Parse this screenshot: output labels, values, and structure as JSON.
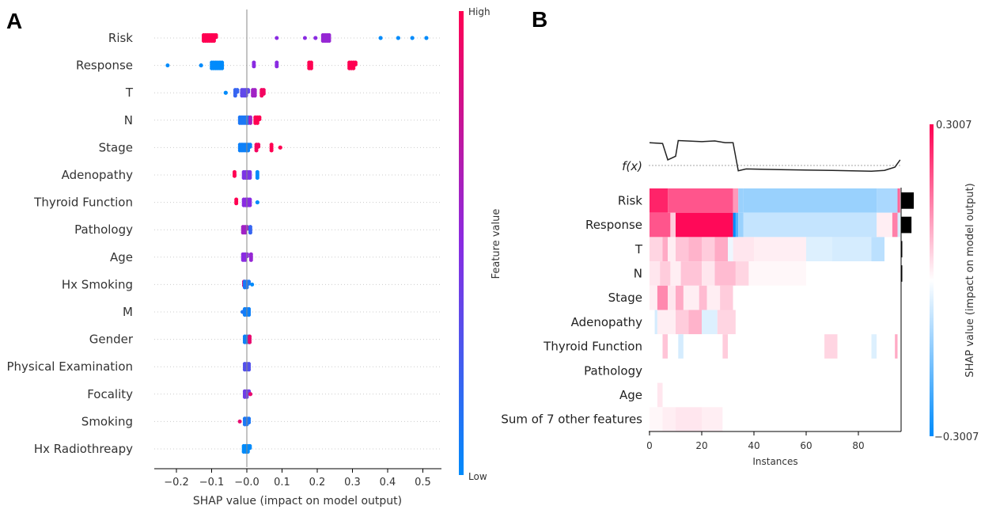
{
  "panels": [
    {
      "letter": "A",
      "chart_data": {
        "type": "scatter",
        "subtype": "beeswarm",
        "features": [
          "Risk",
          "Response",
          "T",
          "N",
          "Stage",
          "Adenopathy",
          "Thyroid Function",
          "Pathology",
          "Age",
          "Hx Smoking",
          "M",
          "Gender",
          "Physical Examination",
          "Focality",
          "Smoking",
          "Hx Radiothreapy"
        ],
        "xlabel": "SHAP value (impact on model output)",
        "xticks": [
          -0.2,
          -0.1,
          0.0,
          0.1,
          0.2,
          0.3,
          0.4,
          0.5
        ],
        "xtick_labels": [
          "−0.2",
          "−0.1",
          "−0.0",
          "0.1",
          "0.2",
          "0.3",
          "0.4",
          "0.5"
        ],
        "xlim": [
          -0.26,
          0.56
        ],
        "colorbar": {
          "label": "Feature value",
          "high": "High",
          "low": "Low",
          "high_color": "#ff0052",
          "mid_color": "#8a2be2",
          "low_color": "#008bfb"
        },
        "series": [
          {
            "feature": "Risk",
            "points": [
              {
                "x": -0.105,
                "v": 1,
                "n": 26
              },
              {
                "x": 0.085,
                "v": 0.5,
                "n": 1
              },
              {
                "x": 0.165,
                "v": 0.5,
                "n": 1
              },
              {
                "x": 0.195,
                "v": 0.5,
                "n": 2
              },
              {
                "x": 0.225,
                "v": 0.55,
                "n": 16
              },
              {
                "x": 0.38,
                "v": 0,
                "n": 2
              },
              {
                "x": 0.43,
                "v": 0,
                "n": 2
              },
              {
                "x": 0.47,
                "v": 0,
                "n": 2
              },
              {
                "x": 0.51,
                "v": 0,
                "n": 2
              }
            ]
          },
          {
            "feature": "Response",
            "points": [
              {
                "x": -0.225,
                "v": 0,
                "n": 1
              },
              {
                "x": -0.13,
                "v": 0,
                "n": 2
              },
              {
                "x": -0.085,
                "v": 0,
                "n": 24
              },
              {
                "x": 0.02,
                "v": 0.5,
                "n": 3
              },
              {
                "x": 0.085,
                "v": 0.5,
                "n": 3
              },
              {
                "x": 0.18,
                "v": 1,
                "n": 8
              },
              {
                "x": 0.3,
                "v": 1,
                "n": 14
              }
            ]
          },
          {
            "feature": "T",
            "points": [
              {
                "x": -0.06,
                "v": 0,
                "n": 2
              },
              {
                "x": -0.03,
                "v": 0.2,
                "n": 6
              },
              {
                "x": -0.005,
                "v": 0.35,
                "n": 14
              },
              {
                "x": 0.02,
                "v": 0.6,
                "n": 8
              },
              {
                "x": 0.045,
                "v": 0.95,
                "n": 7
              }
            ]
          },
          {
            "feature": "N",
            "points": [
              {
                "x": -0.008,
                "v": 0.1,
                "n": 20
              },
              {
                "x": 0.01,
                "v": 0.6,
                "n": 4
              },
              {
                "x": 0.03,
                "v": 1,
                "n": 10
              }
            ]
          },
          {
            "feature": "Stage",
            "points": [
              {
                "x": -0.005,
                "v": 0.05,
                "n": 22
              },
              {
                "x": 0.03,
                "v": 0.95,
                "n": 6
              },
              {
                "x": 0.07,
                "v": 1,
                "n": 4
              },
              {
                "x": 0.095,
                "v": 1,
                "n": 2
              }
            ]
          },
          {
            "feature": "Adenopathy",
            "points": [
              {
                "x": -0.035,
                "v": 1,
                "n": 3
              },
              {
                "x": 0.0,
                "v": 0.45,
                "n": 16
              },
              {
                "x": 0.03,
                "v": 0,
                "n": 4
              }
            ]
          },
          {
            "feature": "Thyroid Function",
            "points": [
              {
                "x": -0.03,
                "v": 1,
                "n": 3
              },
              {
                "x": 0.0,
                "v": 0.5,
                "n": 16
              },
              {
                "x": 0.03,
                "v": 0,
                "n": 2
              }
            ]
          },
          {
            "feature": "Pathology",
            "points": [
              {
                "x": -0.005,
                "v": 0.6,
                "n": 10
              },
              {
                "x": 0.01,
                "v": 0.2,
                "n": 4
              }
            ]
          },
          {
            "feature": "Age",
            "points": [
              {
                "x": -0.005,
                "v": 0.5,
                "n": 10
              },
              {
                "x": 0.012,
                "v": 0.55,
                "n": 4
              }
            ]
          },
          {
            "feature": "Hx Smoking",
            "points": [
              {
                "x": -0.008,
                "v": 0.8,
                "n": 3
              },
              {
                "x": 0.0,
                "v": 0.1,
                "n": 10
              },
              {
                "x": 0.015,
                "v": 0,
                "n": 1
              }
            ]
          },
          {
            "feature": "M",
            "points": [
              {
                "x": 0.0,
                "v": 0.05,
                "n": 12
              },
              {
                "x": -0.012,
                "v": 0.1,
                "n": 2
              }
            ]
          },
          {
            "feature": "Gender",
            "points": [
              {
                "x": 0.0,
                "v": 0.05,
                "n": 12
              },
              {
                "x": 0.008,
                "v": 0.9,
                "n": 4
              }
            ]
          },
          {
            "feature": "Physical Examination",
            "points": [
              {
                "x": 0.0,
                "v": 0.3,
                "n": 12
              }
            ]
          },
          {
            "feature": "Focality",
            "points": [
              {
                "x": 0.0,
                "v": 0.4,
                "n": 10
              },
              {
                "x": 0.01,
                "v": 0.9,
                "n": 2
              }
            ]
          },
          {
            "feature": "Smoking",
            "points": [
              {
                "x": -0.02,
                "v": 0.9,
                "n": 1
              },
              {
                "x": 0.0,
                "v": 0.1,
                "n": 11
              }
            ]
          },
          {
            "feature": "Hx Radiothreapy",
            "points": [
              {
                "x": 0.0,
                "v": 0,
                "n": 14
              }
            ]
          }
        ]
      }
    },
    {
      "letter": "B",
      "chart_data": {
        "type": "heatmap",
        "features": [
          "Risk",
          "Response",
          "T",
          "N",
          "Stage",
          "Adenopathy",
          "Thyroid Function",
          "Pathology",
          "Age",
          "Sum of 7 other features"
        ],
        "xlabel": "Instances",
        "xticks": [
          0,
          20,
          40,
          60,
          80
        ],
        "xlim": [
          0,
          96
        ],
        "n_instances": 96,
        "fx_label": "f(x)",
        "colorbar": {
          "label": "SHAP value (impact on model output)",
          "max_label": "0.3007",
          "min_label": "−0.3007",
          "vmax": 0.3007,
          "vmin": -0.3007,
          "high_color": "#ff0052",
          "low_color": "#008bfb"
        },
        "fx_curve": [
          [
            0,
            0.82
          ],
          [
            5,
            0.8
          ],
          [
            7,
            0.35
          ],
          [
            10,
            0.45
          ],
          [
            11,
            0.88
          ],
          [
            20,
            0.85
          ],
          [
            25,
            0.87
          ],
          [
            29,
            0.82
          ],
          [
            32,
            0.82
          ],
          [
            34,
            0.05
          ],
          [
            37,
            0.1
          ],
          [
            50,
            0.08
          ],
          [
            70,
            0.06
          ],
          [
            85,
            0.04
          ],
          [
            90,
            0.06
          ],
          [
            94,
            0.15
          ],
          [
            96,
            0.35
          ]
        ],
        "feature_importance": [
          1.0,
          0.82,
          0.08,
          0.06,
          0,
          0,
          0,
          0,
          0,
          0
        ],
        "rows": [
          {
            "feature": "Risk",
            "segments": [
              [
                0,
                7,
                0.26
              ],
              [
                7,
                32,
                0.2
              ],
              [
                32,
                34,
                0.12
              ],
              [
                34,
                36,
                -0.12
              ],
              [
                36,
                87,
                -0.12
              ],
              [
                87,
                95,
                -0.1
              ],
              [
                95,
                96,
                0.18
              ]
            ]
          },
          {
            "feature": "Response",
            "segments": [
              [
                0,
                8,
                0.2
              ],
              [
                8,
                10,
                0.06
              ],
              [
                10,
                32,
                0.29
              ],
              [
                32,
                33,
                -0.3
              ],
              [
                33,
                34,
                -0.2
              ],
              [
                34,
                36,
                -0.12
              ],
              [
                36,
                87,
                -0.07
              ],
              [
                87,
                93,
                0.02
              ],
              [
                93,
                95,
                0.15
              ],
              [
                95,
                96,
                -0.05
              ]
            ]
          },
          {
            "feature": "T",
            "segments": [
              [
                0,
                5,
                0.05
              ],
              [
                5,
                7,
                0.1
              ],
              [
                7,
                10,
                0.02
              ],
              [
                10,
                15,
                0.07
              ],
              [
                15,
                20,
                0.09
              ],
              [
                20,
                25,
                0.06
              ],
              [
                25,
                30,
                0.1
              ],
              [
                30,
                32,
                -0.02
              ],
              [
                32,
                40,
                0.03
              ],
              [
                40,
                60,
                0.02
              ],
              [
                60,
                70,
                -0.04
              ],
              [
                70,
                85,
                -0.05
              ],
              [
                85,
                90,
                -0.08
              ],
              [
                90,
                96,
                0.0
              ]
            ]
          },
          {
            "feature": "N",
            "segments": [
              [
                0,
                4,
                0.03
              ],
              [
                4,
                8,
                0.06
              ],
              [
                8,
                12,
                0.02
              ],
              [
                12,
                20,
                0.07
              ],
              [
                20,
                25,
                0.03
              ],
              [
                25,
                33,
                0.08
              ],
              [
                33,
                38,
                0.05
              ],
              [
                38,
                60,
                0.01
              ],
              [
                60,
                96,
                0.0
              ]
            ]
          },
          {
            "feature": "Stage",
            "segments": [
              [
                0,
                3,
                0.02
              ],
              [
                3,
                7,
                0.14
              ],
              [
                7,
                10,
                0.03
              ],
              [
                10,
                13,
                0.1
              ],
              [
                13,
                19,
                0.02
              ],
              [
                19,
                22,
                0.08
              ],
              [
                22,
                27,
                0.02
              ],
              [
                27,
                32,
                0.06
              ],
              [
                32,
                96,
                0.0
              ]
            ]
          },
          {
            "feature": "Adenopathy",
            "segments": [
              [
                0,
                2,
                0.0
              ],
              [
                2,
                3,
                -0.05
              ],
              [
                3,
                10,
                0.02
              ],
              [
                10,
                15,
                0.06
              ],
              [
                15,
                20,
                0.09
              ],
              [
                20,
                26,
                -0.04
              ],
              [
                26,
                33,
                0.05
              ],
              [
                33,
                96,
                0.0
              ]
            ]
          },
          {
            "feature": "Thyroid Function",
            "segments": [
              [
                0,
                5,
                0.0
              ],
              [
                5,
                7,
                0.07
              ],
              [
                7,
                11,
                0.0
              ],
              [
                11,
                13,
                -0.05
              ],
              [
                13,
                28,
                0.0
              ],
              [
                28,
                30,
                0.06
              ],
              [
                30,
                67,
                0.0
              ],
              [
                67,
                72,
                0.05
              ],
              [
                72,
                85,
                0.0
              ],
              [
                85,
                87,
                -0.04
              ],
              [
                87,
                94,
                0.0
              ],
              [
                94,
                95,
                0.1
              ],
              [
                95,
                96,
                0.0
              ]
            ]
          },
          {
            "feature": "Pathology",
            "segments": [
              [
                0,
                96,
                0.0
              ]
            ]
          },
          {
            "feature": "Age",
            "segments": [
              [
                0,
                3,
                0.0
              ],
              [
                3,
                5,
                0.03
              ],
              [
                5,
                96,
                0.0
              ]
            ]
          },
          {
            "feature": "Sum of 7 other features",
            "segments": [
              [
                0,
                5,
                0.01
              ],
              [
                5,
                10,
                0.02
              ],
              [
                10,
                20,
                0.03
              ],
              [
                20,
                28,
                0.02
              ],
              [
                28,
                96,
                0.0
              ]
            ]
          }
        ]
      }
    }
  ]
}
